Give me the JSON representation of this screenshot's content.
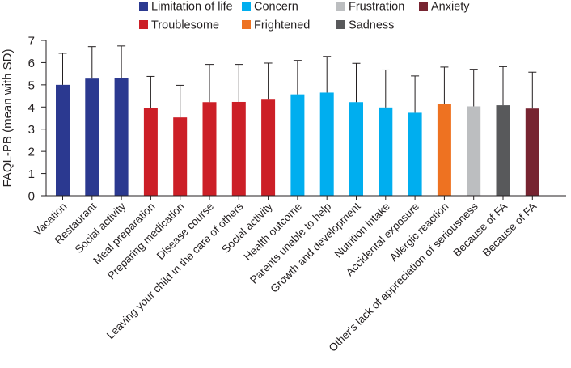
{
  "chart_data": {
    "type": "bar",
    "ylabel": "FAQL-PB (mean with SD)",
    "ylim": [
      0,
      7
    ],
    "yticks": [
      0,
      1,
      2,
      3,
      4,
      5,
      6,
      7
    ],
    "grid": false,
    "legend_position": "top",
    "legend": [
      {
        "name": "Limitation of life",
        "color": "#2b3990"
      },
      {
        "name": "Concern",
        "color": "#00aeef"
      },
      {
        "name": "Frustration",
        "color": "#bcbec0"
      },
      {
        "name": "Anxiety",
        "color": "#772431"
      },
      {
        "name": "Troublesome",
        "color": "#cc1f27"
      },
      {
        "name": "Frightened",
        "color": "#ee7221"
      },
      {
        "name": "Sadness",
        "color": "#58595b"
      }
    ],
    "bars": [
      {
        "label": "Vacation",
        "value": 5.0,
        "sd": 1.42,
        "group": "Limitation of life"
      },
      {
        "label": "Restaurant",
        "value": 5.28,
        "sd": 1.44,
        "group": "Limitation of life"
      },
      {
        "label": "Social activity",
        "value": 5.32,
        "sd": 1.43,
        "group": "Limitation of life"
      },
      {
        "label": "Meal preparation",
        "value": 3.97,
        "sd": 1.41,
        "group": "Troublesome"
      },
      {
        "label": "Preparing medication",
        "value": 3.53,
        "sd": 1.45,
        "group": "Troublesome"
      },
      {
        "label": "Disease course",
        "value": 4.22,
        "sd": 1.7,
        "group": "Troublesome"
      },
      {
        "label": "Leaving your child in the care of others",
        "value": 4.23,
        "sd": 1.69,
        "group": "Troublesome"
      },
      {
        "label": "Social activity",
        "value": 4.33,
        "sd": 1.65,
        "group": "Troublesome"
      },
      {
        "label": "Health outcome",
        "value": 4.57,
        "sd": 1.53,
        "group": "Concern"
      },
      {
        "label": "Parents unable to help",
        "value": 4.65,
        "sd": 1.63,
        "group": "Concern"
      },
      {
        "label": "Growth and development",
        "value": 4.22,
        "sd": 1.75,
        "group": "Concern"
      },
      {
        "label": "Nutrition intake",
        "value": 3.98,
        "sd": 1.69,
        "group": "Concern"
      },
      {
        "label": "Accidental exposure",
        "value": 3.74,
        "sd": 1.66,
        "group": "Concern"
      },
      {
        "label": "Allergic reaction",
        "value": 4.12,
        "sd": 1.68,
        "group": "Frightened"
      },
      {
        "label": "Other's lack of appreciation of seriousness",
        "value": 4.03,
        "sd": 1.67,
        "group": "Frustration"
      },
      {
        "label": "Because of FA",
        "value": 4.08,
        "sd": 1.74,
        "group": "Sadness"
      },
      {
        "label": "Because of FA",
        "value": 3.93,
        "sd": 1.64,
        "group": "Anxiety"
      }
    ]
  }
}
